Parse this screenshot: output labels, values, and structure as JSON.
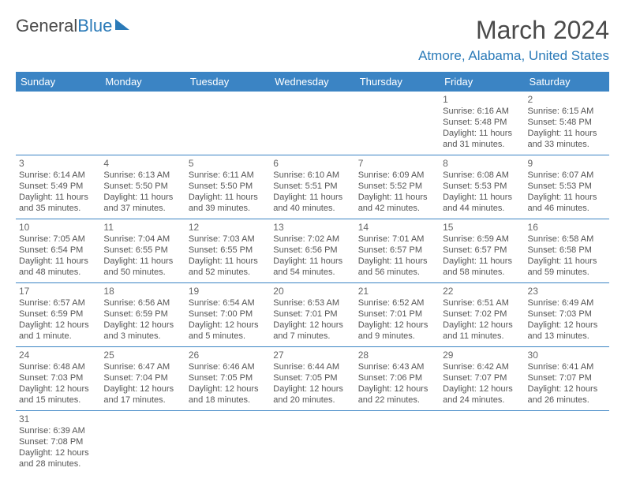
{
  "brand": {
    "part1": "General",
    "part2": "Blue"
  },
  "title": "March 2024",
  "location": "Atmore, Alabama, United States",
  "colors": {
    "header_bg": "#3b84c4",
    "header_fg": "#ffffff",
    "accent": "#2a7ab8",
    "text": "#555555",
    "daynum": "#666666",
    "border": "#3b84c4"
  },
  "weekdays": [
    "Sunday",
    "Monday",
    "Tuesday",
    "Wednesday",
    "Thursday",
    "Friday",
    "Saturday"
  ],
  "weeks": [
    [
      null,
      null,
      null,
      null,
      null,
      {
        "d": "1",
        "sr": "Sunrise: 6:16 AM",
        "ss": "Sunset: 5:48 PM",
        "dl": "Daylight: 11 hours and 31 minutes."
      },
      {
        "d": "2",
        "sr": "Sunrise: 6:15 AM",
        "ss": "Sunset: 5:48 PM",
        "dl": "Daylight: 11 hours and 33 minutes."
      }
    ],
    [
      {
        "d": "3",
        "sr": "Sunrise: 6:14 AM",
        "ss": "Sunset: 5:49 PM",
        "dl": "Daylight: 11 hours and 35 minutes."
      },
      {
        "d": "4",
        "sr": "Sunrise: 6:13 AM",
        "ss": "Sunset: 5:50 PM",
        "dl": "Daylight: 11 hours and 37 minutes."
      },
      {
        "d": "5",
        "sr": "Sunrise: 6:11 AM",
        "ss": "Sunset: 5:50 PM",
        "dl": "Daylight: 11 hours and 39 minutes."
      },
      {
        "d": "6",
        "sr": "Sunrise: 6:10 AM",
        "ss": "Sunset: 5:51 PM",
        "dl": "Daylight: 11 hours and 40 minutes."
      },
      {
        "d": "7",
        "sr": "Sunrise: 6:09 AM",
        "ss": "Sunset: 5:52 PM",
        "dl": "Daylight: 11 hours and 42 minutes."
      },
      {
        "d": "8",
        "sr": "Sunrise: 6:08 AM",
        "ss": "Sunset: 5:53 PM",
        "dl": "Daylight: 11 hours and 44 minutes."
      },
      {
        "d": "9",
        "sr": "Sunrise: 6:07 AM",
        "ss": "Sunset: 5:53 PM",
        "dl": "Daylight: 11 hours and 46 minutes."
      }
    ],
    [
      {
        "d": "10",
        "sr": "Sunrise: 7:05 AM",
        "ss": "Sunset: 6:54 PM",
        "dl": "Daylight: 11 hours and 48 minutes."
      },
      {
        "d": "11",
        "sr": "Sunrise: 7:04 AM",
        "ss": "Sunset: 6:55 PM",
        "dl": "Daylight: 11 hours and 50 minutes."
      },
      {
        "d": "12",
        "sr": "Sunrise: 7:03 AM",
        "ss": "Sunset: 6:55 PM",
        "dl": "Daylight: 11 hours and 52 minutes."
      },
      {
        "d": "13",
        "sr": "Sunrise: 7:02 AM",
        "ss": "Sunset: 6:56 PM",
        "dl": "Daylight: 11 hours and 54 minutes."
      },
      {
        "d": "14",
        "sr": "Sunrise: 7:01 AM",
        "ss": "Sunset: 6:57 PM",
        "dl": "Daylight: 11 hours and 56 minutes."
      },
      {
        "d": "15",
        "sr": "Sunrise: 6:59 AM",
        "ss": "Sunset: 6:57 PM",
        "dl": "Daylight: 11 hours and 58 minutes."
      },
      {
        "d": "16",
        "sr": "Sunrise: 6:58 AM",
        "ss": "Sunset: 6:58 PM",
        "dl": "Daylight: 11 hours and 59 minutes."
      }
    ],
    [
      {
        "d": "17",
        "sr": "Sunrise: 6:57 AM",
        "ss": "Sunset: 6:59 PM",
        "dl": "Daylight: 12 hours and 1 minute."
      },
      {
        "d": "18",
        "sr": "Sunrise: 6:56 AM",
        "ss": "Sunset: 6:59 PM",
        "dl": "Daylight: 12 hours and 3 minutes."
      },
      {
        "d": "19",
        "sr": "Sunrise: 6:54 AM",
        "ss": "Sunset: 7:00 PM",
        "dl": "Daylight: 12 hours and 5 minutes."
      },
      {
        "d": "20",
        "sr": "Sunrise: 6:53 AM",
        "ss": "Sunset: 7:01 PM",
        "dl": "Daylight: 12 hours and 7 minutes."
      },
      {
        "d": "21",
        "sr": "Sunrise: 6:52 AM",
        "ss": "Sunset: 7:01 PM",
        "dl": "Daylight: 12 hours and 9 minutes."
      },
      {
        "d": "22",
        "sr": "Sunrise: 6:51 AM",
        "ss": "Sunset: 7:02 PM",
        "dl": "Daylight: 12 hours and 11 minutes."
      },
      {
        "d": "23",
        "sr": "Sunrise: 6:49 AM",
        "ss": "Sunset: 7:03 PM",
        "dl": "Daylight: 12 hours and 13 minutes."
      }
    ],
    [
      {
        "d": "24",
        "sr": "Sunrise: 6:48 AM",
        "ss": "Sunset: 7:03 PM",
        "dl": "Daylight: 12 hours and 15 minutes."
      },
      {
        "d": "25",
        "sr": "Sunrise: 6:47 AM",
        "ss": "Sunset: 7:04 PM",
        "dl": "Daylight: 12 hours and 17 minutes."
      },
      {
        "d": "26",
        "sr": "Sunrise: 6:46 AM",
        "ss": "Sunset: 7:05 PM",
        "dl": "Daylight: 12 hours and 18 minutes."
      },
      {
        "d": "27",
        "sr": "Sunrise: 6:44 AM",
        "ss": "Sunset: 7:05 PM",
        "dl": "Daylight: 12 hours and 20 minutes."
      },
      {
        "d": "28",
        "sr": "Sunrise: 6:43 AM",
        "ss": "Sunset: 7:06 PM",
        "dl": "Daylight: 12 hours and 22 minutes."
      },
      {
        "d": "29",
        "sr": "Sunrise: 6:42 AM",
        "ss": "Sunset: 7:07 PM",
        "dl": "Daylight: 12 hours and 24 minutes."
      },
      {
        "d": "30",
        "sr": "Sunrise: 6:41 AM",
        "ss": "Sunset: 7:07 PM",
        "dl": "Daylight: 12 hours and 26 minutes."
      }
    ],
    [
      {
        "d": "31",
        "sr": "Sunrise: 6:39 AM",
        "ss": "Sunset: 7:08 PM",
        "dl": "Daylight: 12 hours and 28 minutes."
      },
      null,
      null,
      null,
      null,
      null,
      null
    ]
  ]
}
